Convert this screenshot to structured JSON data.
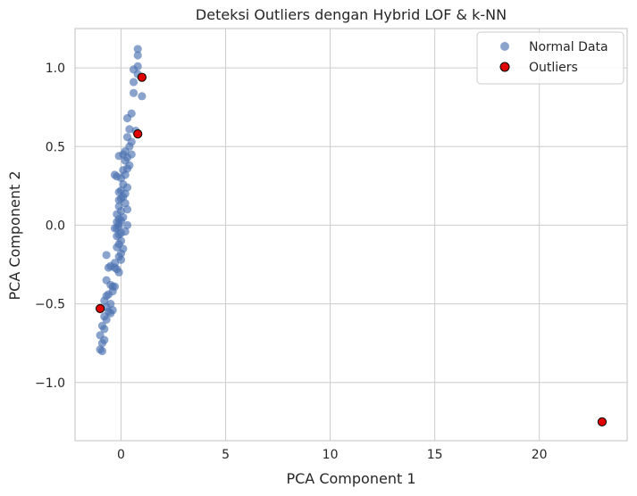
{
  "chart_data": {
    "type": "scatter",
    "title": "Deteksi Outliers dengan Hybrid LOF & k-NN",
    "xlabel": "PCA Component 1",
    "ylabel": "PCA Component 2",
    "xlim": [
      -2.2,
      24.2
    ],
    "ylim": [
      -1.37,
      1.25
    ],
    "xticks": [
      0,
      5,
      10,
      15,
      20
    ],
    "yticks": [
      -1.0,
      -0.5,
      0.0,
      0.5,
      1.0
    ],
    "xtick_labels": [
      "0",
      "5",
      "10",
      "15",
      "20"
    ],
    "ytick_labels": [
      "−1.0",
      "−0.5",
      "0.0",
      "0.5",
      "1.0"
    ],
    "grid": true,
    "legend_position": "top-right",
    "colors": {
      "normal": "#4c72b0",
      "outlier": "#e00000",
      "outlier_edge": "#000000",
      "grid": "#cccccc",
      "spine": "#cccccc"
    },
    "series": [
      {
        "name": "Normal Data",
        "x": [
          0.8,
          0.8,
          0.8,
          0.6,
          0.8,
          0.6,
          1.0,
          0.6,
          0.5,
          0.3,
          0.4,
          0.7,
          0.5,
          0.3,
          0.4,
          0.2,
          0.5,
          0.3,
          0.1,
          0.2,
          0.4,
          0.3,
          0.1,
          -0.1,
          0.2,
          0.0,
          -0.2,
          -0.3,
          0.1,
          0.3,
          0.0,
          0.2,
          -0.1,
          0.1,
          0.0,
          -0.1,
          0.2,
          -0.1,
          0.3,
          0.0,
          -0.2,
          0.1,
          -0.1,
          0.0,
          -0.2,
          -0.1,
          0.3,
          -0.1,
          -0.2,
          -0.3,
          0.2,
          0.0,
          -0.1,
          -0.2,
          0.0,
          -0.1,
          0.1,
          -0.2,
          0.0,
          -0.3,
          -0.1,
          0.0,
          -0.3,
          -0.2,
          -0.1,
          -0.4,
          -0.7,
          -0.6,
          -0.5,
          -0.7,
          -0.5,
          -0.3,
          -0.4,
          -0.6,
          -0.7,
          -0.8,
          -0.5,
          -0.7,
          -0.4,
          -0.6,
          -0.5,
          -0.8,
          -0.7,
          -0.9,
          -0.8,
          -1.0,
          -0.8,
          -0.9,
          -1.0,
          -0.9
        ],
        "y": [
          1.12,
          1.08,
          1.01,
          0.99,
          0.96,
          0.91,
          0.82,
          0.84,
          0.71,
          0.68,
          0.61,
          0.6,
          0.53,
          0.56,
          0.5,
          0.47,
          0.45,
          0.43,
          0.45,
          0.41,
          0.38,
          0.36,
          0.35,
          0.44,
          0.32,
          0.3,
          0.31,
          0.32,
          0.26,
          0.24,
          0.22,
          0.2,
          0.21,
          0.18,
          0.17,
          0.16,
          0.14,
          0.12,
          0.1,
          0.09,
          0.07,
          0.05,
          0.04,
          0.03,
          0.02,
          0.01,
          0.0,
          -0.01,
          -0.02,
          -0.02,
          -0.04,
          -0.05,
          -0.06,
          -0.07,
          -0.1,
          -0.12,
          -0.15,
          -0.14,
          -0.18,
          -0.24,
          -0.2,
          -0.22,
          -0.27,
          -0.28,
          -0.3,
          -0.39,
          -0.19,
          -0.27,
          -0.26,
          -0.35,
          -0.38,
          -0.39,
          -0.42,
          -0.44,
          -0.45,
          -0.48,
          -0.5,
          -0.52,
          -0.54,
          -0.55,
          -0.56,
          -0.58,
          -0.6,
          -0.64,
          -0.66,
          -0.7,
          -0.73,
          -0.75,
          -0.79,
          -0.8
        ]
      },
      {
        "name": "Outliers",
        "x": [
          1.0,
          0.8,
          -1.0,
          23.0
        ],
        "y": [
          0.94,
          0.58,
          -0.53,
          -1.25
        ]
      }
    ]
  }
}
